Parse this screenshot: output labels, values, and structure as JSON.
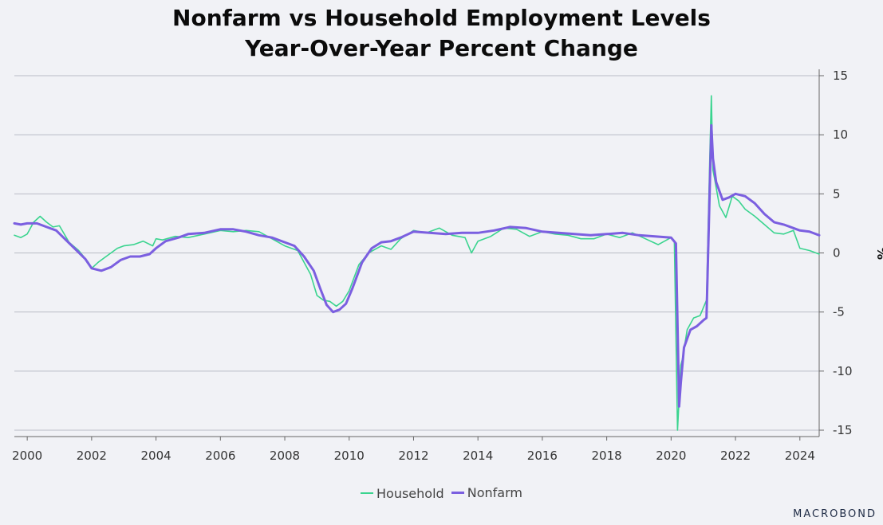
{
  "title_line1": "Nonfarm vs Household Employment Levels",
  "title_line2": "Year-Over-Year Percent Change",
  "brand": "MACROBOND",
  "colors": {
    "household": "#3ad48f",
    "nonfarm": "#7b5fe0",
    "grid": "#b9bcc5",
    "background": "#f1f2f6"
  },
  "chart_data": {
    "type": "line",
    "title": "Nonfarm vs Household Employment Levels Year-Over-Year Percent Change",
    "ylabel": "%",
    "ylim": [
      -15,
      15
    ],
    "xlim": [
      1999.6,
      2024.6
    ],
    "y_ticks": [
      15,
      10,
      5,
      0,
      -5,
      -10,
      -15
    ],
    "y_tick_labels": [
      "15",
      "10",
      "5",
      "0",
      "-5",
      "-10",
      "-15"
    ],
    "x_ticks": [
      "2000",
      "2002",
      "2004",
      "2006",
      "2008",
      "2010",
      "2012",
      "2014",
      "2016",
      "2018",
      "2020",
      "2022",
      "2024"
    ],
    "grid": true,
    "y_axis_position": "right",
    "legend_position": "bottom-center",
    "series": [
      {
        "name": "Household",
        "x": [
          1999.6,
          1999.8,
          2000.0,
          2000.2,
          2000.4,
          2000.6,
          2000.8,
          2001.0,
          2001.3,
          2001.6,
          2001.9,
          2002.0,
          2002.2,
          2002.5,
          2002.8,
          2003.0,
          2003.3,
          2003.6,
          2003.9,
          2004.0,
          2004.2,
          2004.6,
          2005.0,
          2005.5,
          2006.0,
          2006.4,
          2006.8,
          2007.2,
          2007.6,
          2008.0,
          2008.4,
          2008.8,
          2009.0,
          2009.2,
          2009.4,
          2009.6,
          2009.8,
          2010.0,
          2010.3,
          2010.6,
          2011.0,
          2011.3,
          2011.6,
          2012.0,
          2012.4,
          2012.8,
          2013.2,
          2013.6,
          2013.8,
          2014.0,
          2014.4,
          2014.8,
          2015.2,
          2015.6,
          2016.0,
          2016.4,
          2016.8,
          2017.2,
          2017.6,
          2018.0,
          2018.4,
          2018.8,
          2019.2,
          2019.6,
          2020.0,
          2020.1,
          2020.2,
          2020.3,
          2020.35,
          2020.5,
          2020.7,
          2020.9,
          2021.1,
          2021.2,
          2021.25,
          2021.3,
          2021.35,
          2021.5,
          2021.7,
          2021.9,
          2022.1,
          2022.3,
          2022.6,
          2022.9,
          2023.2,
          2023.5,
          2023.8,
          2024.0,
          2024.3,
          2024.6
        ],
        "values": [
          1.5,
          1.3,
          1.6,
          2.6,
          3.1,
          2.6,
          2.2,
          2.3,
          0.9,
          0.2,
          -0.8,
          -1.3,
          -0.8,
          -0.2,
          0.4,
          0.6,
          0.7,
          1.0,
          0.6,
          1.2,
          1.1,
          1.4,
          1.3,
          1.6,
          1.9,
          1.8,
          1.9,
          1.8,
          1.2,
          0.6,
          0.2,
          -1.8,
          -3.6,
          -4.0,
          -4.1,
          -4.5,
          -4.1,
          -3.2,
          -1.0,
          0.0,
          0.6,
          0.3,
          1.2,
          1.9,
          1.7,
          2.1,
          1.5,
          1.3,
          0.0,
          1.0,
          1.4,
          2.1,
          2.0,
          1.4,
          1.8,
          1.6,
          1.5,
          1.2,
          1.2,
          1.6,
          1.3,
          1.7,
          1.2,
          0.7,
          1.3,
          1.0,
          -15.0,
          -9.5,
          -9.0,
          -6.5,
          -5.5,
          -5.3,
          -4.0,
          8.0,
          13.3,
          7.0,
          6.3,
          4.0,
          3.0,
          4.8,
          4.4,
          3.7,
          3.1,
          2.4,
          1.7,
          1.6,
          1.9,
          0.4,
          0.2,
          -0.1
        ]
      },
      {
        "name": "Nonfarm",
        "x": [
          1999.6,
          1999.8,
          2000.0,
          2000.3,
          2000.6,
          2000.9,
          2001.2,
          2001.5,
          2001.8,
          2002.0,
          2002.3,
          2002.6,
          2002.9,
          2003.2,
          2003.5,
          2003.8,
          2004.0,
          2004.3,
          2004.7,
          2005.0,
          2005.5,
          2006.0,
          2006.4,
          2006.8,
          2007.2,
          2007.6,
          2008.0,
          2008.3,
          2008.6,
          2008.9,
          2009.1,
          2009.3,
          2009.5,
          2009.7,
          2009.9,
          2010.1,
          2010.4,
          2010.7,
          2011.0,
          2011.3,
          2011.6,
          2012.0,
          2012.5,
          2013.0,
          2013.5,
          2014.0,
          2014.5,
          2015.0,
          2015.5,
          2016.0,
          2016.5,
          2017.0,
          2017.5,
          2018.0,
          2018.5,
          2019.0,
          2019.5,
          2020.0,
          2020.15,
          2020.25,
          2020.3,
          2020.4,
          2020.6,
          2020.8,
          2021.0,
          2021.1,
          2021.25,
          2021.3,
          2021.4,
          2021.6,
          2021.8,
          2022.0,
          2022.3,
          2022.6,
          2022.9,
          2023.2,
          2023.5,
          2023.8,
          2024.0,
          2024.3,
          2024.6
        ],
        "values": [
          2.5,
          2.4,
          2.5,
          2.5,
          2.2,
          1.9,
          1.1,
          0.3,
          -0.5,
          -1.3,
          -1.5,
          -1.2,
          -0.6,
          -0.3,
          -0.3,
          -0.1,
          0.4,
          1.0,
          1.3,
          1.6,
          1.7,
          2.0,
          2.0,
          1.8,
          1.5,
          1.3,
          0.9,
          0.6,
          -0.3,
          -1.5,
          -3.0,
          -4.4,
          -5.0,
          -4.8,
          -4.3,
          -3.0,
          -0.8,
          0.4,
          0.9,
          1.0,
          1.3,
          1.8,
          1.7,
          1.6,
          1.7,
          1.7,
          1.9,
          2.2,
          2.1,
          1.8,
          1.7,
          1.6,
          1.5,
          1.6,
          1.7,
          1.5,
          1.4,
          1.3,
          0.8,
          -13.0,
          -11.0,
          -8.0,
          -6.5,
          -6.2,
          -5.7,
          -5.5,
          10.8,
          8.0,
          6.0,
          4.5,
          4.7,
          5.0,
          4.8,
          4.2,
          3.3,
          2.6,
          2.4,
          2.1,
          1.9,
          1.8,
          1.5
        ]
      }
    ]
  }
}
